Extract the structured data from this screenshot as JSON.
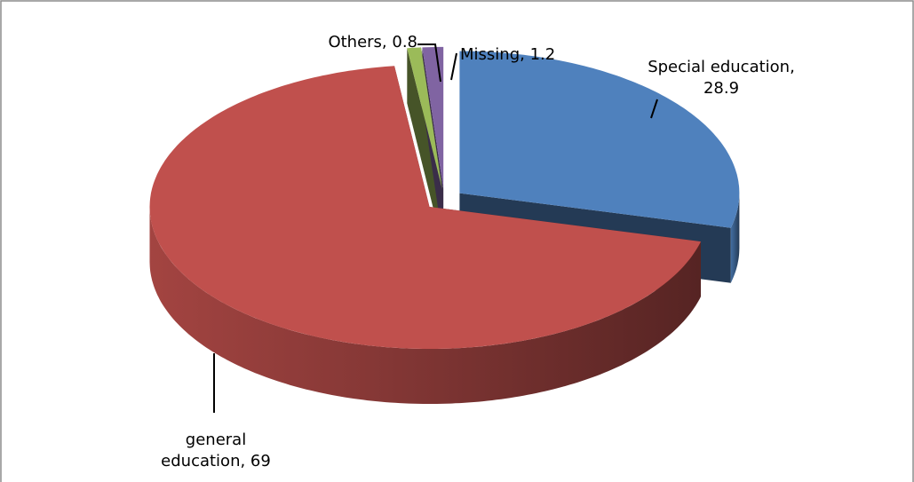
{
  "chart_data": {
    "type": "pie",
    "three_d": true,
    "values": [
      28.9,
      69,
      0.8,
      1.2
    ],
    "value_labels": [
      "Special education, 28.9",
      "general education, 69",
      "Others, 0.8",
      "Missing, 1.2"
    ],
    "colors": [
      "#4f81bd",
      "#c0504d",
      "#9bbb59",
      "#8064a2"
    ]
  }
}
